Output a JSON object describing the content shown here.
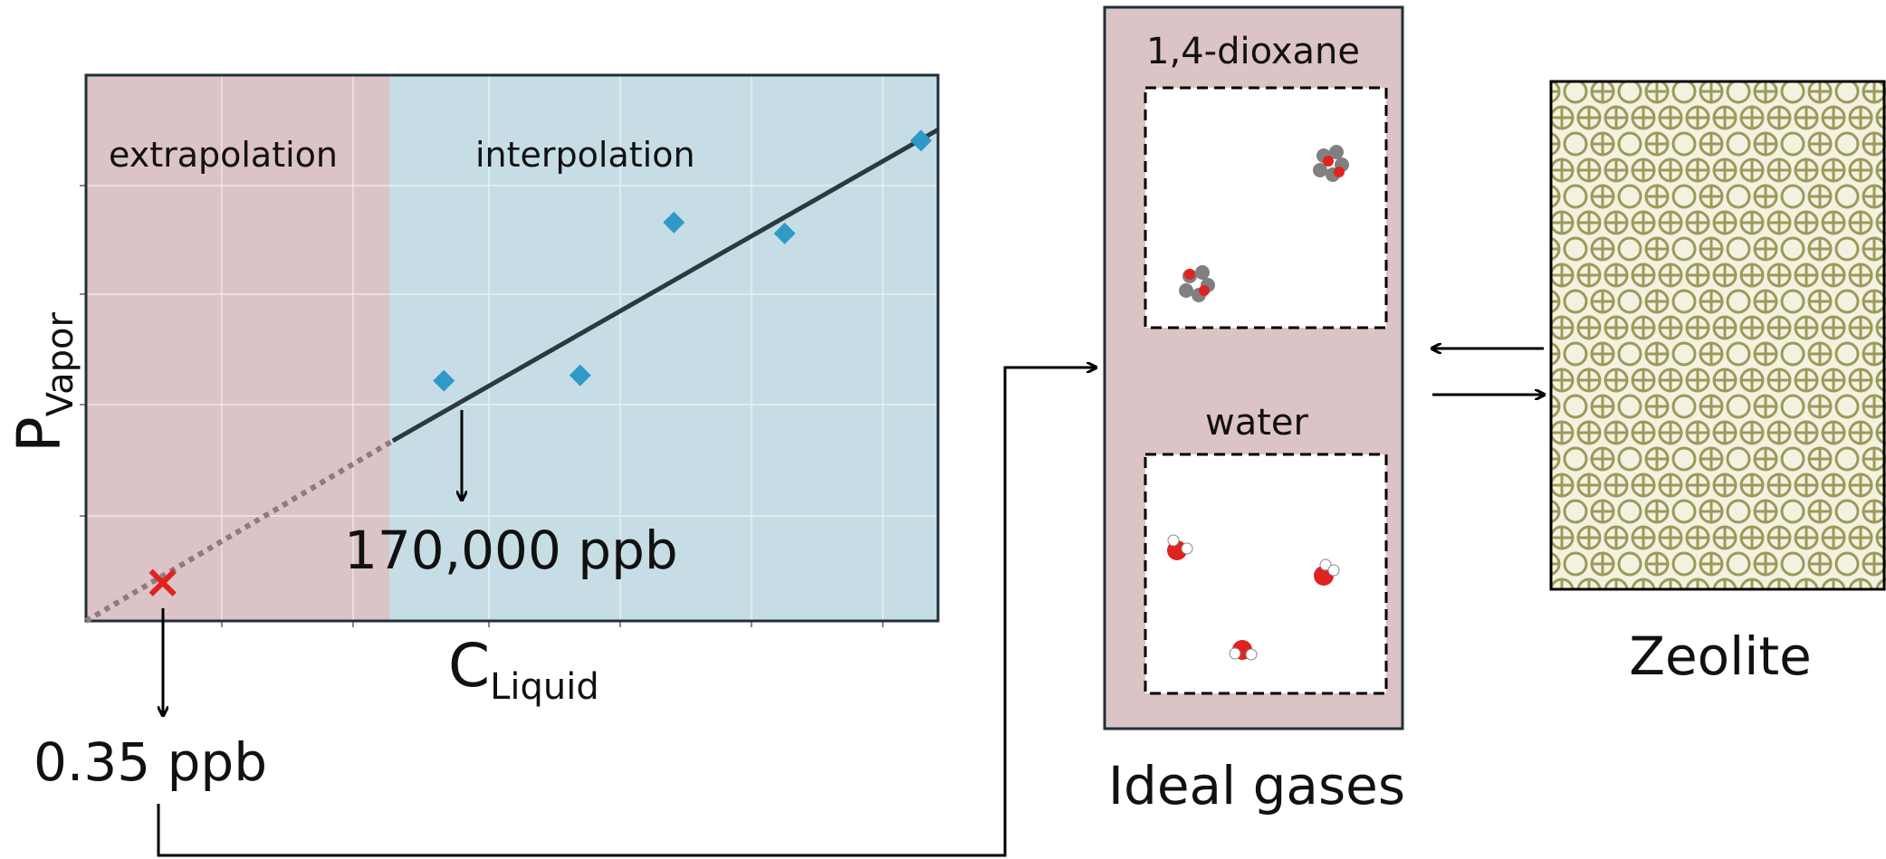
{
  "plot": {
    "region_left_label": "extrapolation",
    "region_right_label": "interpolation",
    "y_axis_label": {
      "base": "P",
      "sub": "Vapor"
    },
    "x_axis_label": {
      "base": "C",
      "sub": "Liquid"
    },
    "annotation_high": "170,000 ppb",
    "annotation_low": "0.35 ppb",
    "colors": {
      "extrapolation_bg": "#dcc3c6",
      "interpolation_bg": "#c7dde6",
      "marker": "#2f9ac7",
      "fit_line": "#2b3a3f",
      "x_marker": "#e0231f"
    }
  },
  "chart_data": {
    "type": "scatter",
    "x": [
      0.42,
      0.58,
      0.69,
      0.82,
      0.98
    ],
    "y": [
      0.44,
      0.45,
      0.73,
      0.71,
      0.88
    ],
    "fit_line": {
      "x": [
        0.36,
        1.0
      ],
      "y": [
        0.33,
        0.9
      ]
    },
    "extrapolated_line": {
      "x": [
        0.0,
        0.36
      ],
      "y": [
        0.0,
        0.33
      ]
    },
    "extrapolated_point": {
      "x": 0.09,
      "y": 0.07
    }
  },
  "gas_box": {
    "panel_top_label": "1,4-dioxane",
    "panel_bottom_label": "water",
    "caption": "Ideal gases"
  },
  "zeolite": {
    "caption": "Zeolite"
  }
}
